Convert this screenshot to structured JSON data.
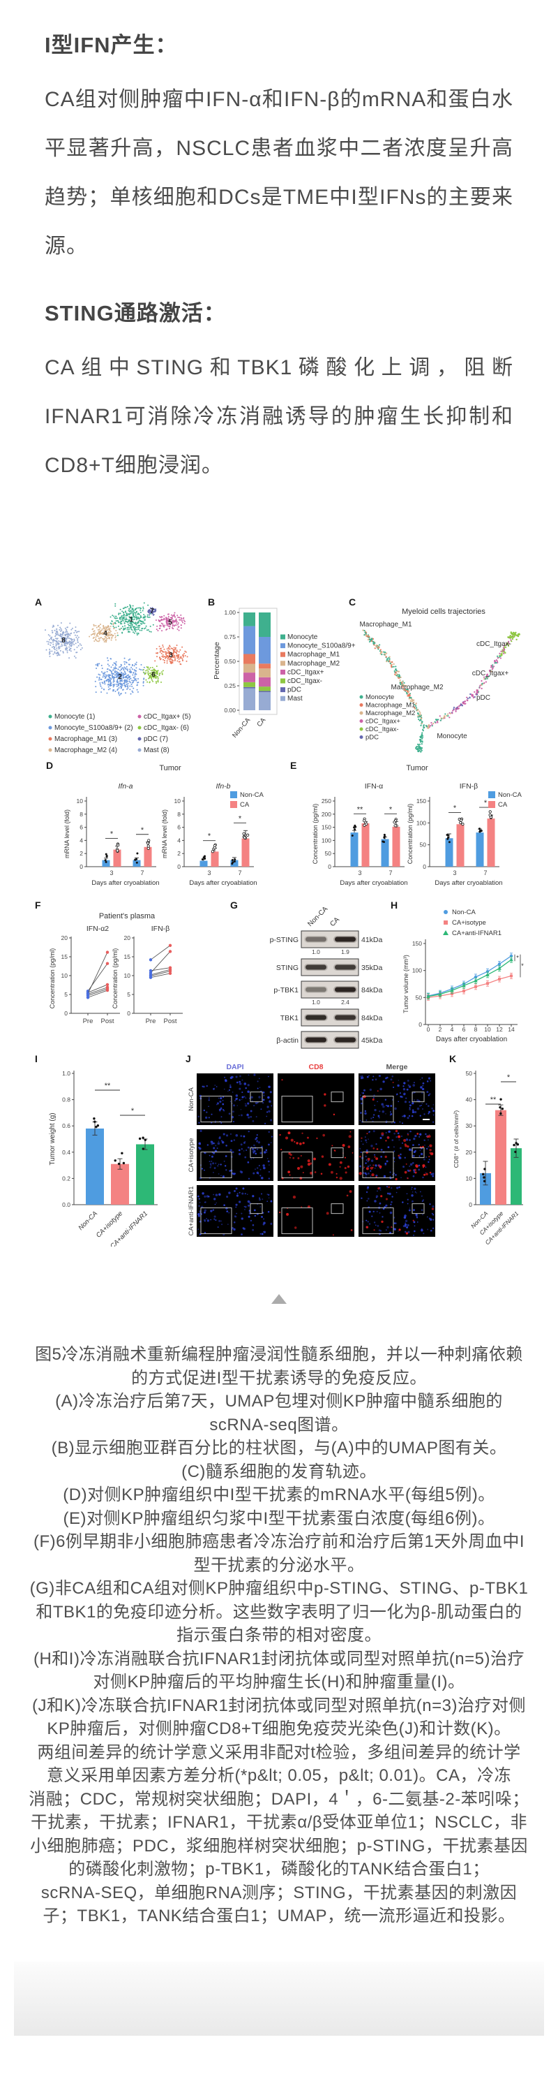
{
  "page": {
    "background": "#ffffff"
  },
  "sections": [
    {
      "heading": "I型IFN产生：",
      "body": "CA组对侧肿瘤中IFN-α和IFN-β的mRNA和蛋白水平显著升高，NSCLC患者血浆中二者浓度呈升高趋势；单核细胞和DCs是TME中I型IFNs的主要来源。"
    },
    {
      "heading": "STING通路激活：",
      "body": "CA组中STING和TBK1磷酸化上调，阻断IFNAR1可消除冷冻消融诱导的肿瘤生长抑制和CD8+T细胞浸润。"
    }
  ],
  "figure": {
    "collapse_icon": "triangle-up-icon",
    "panels": [
      "A",
      "B",
      "C",
      "D",
      "E",
      "F",
      "G",
      "H",
      "I",
      "J",
      "K"
    ]
  },
  "palette": {
    "blue": "#4f9ce0",
    "pink": "#f48282",
    "green": "#2db876",
    "axis": "#444444",
    "label": "#333333",
    "pre_dot": "#4b6fe0",
    "post_dot": "#e85d5d"
  },
  "chart_data": [
    {
      "panel": "A",
      "type": "scatter",
      "name": "UMAP of tumor-infiltrating myeloid cells",
      "clusters": [
        {
          "id": 1,
          "name": "Monocyte",
          "color": "#3fb08e",
          "x": 140,
          "y": 42,
          "rx": 34,
          "ry": 24
        },
        {
          "id": 2,
          "name": "Monocyte_S100a8/9+",
          "color": "#6d99dd",
          "x": 124,
          "y": 124,
          "rx": 38,
          "ry": 28
        },
        {
          "id": 3,
          "name": "Macrophage_M1",
          "color": "#e97a5f",
          "x": 197,
          "y": 93,
          "rx": 26,
          "ry": 15
        },
        {
          "id": 4,
          "name": "Macrophage_M2",
          "color": "#d9b48d",
          "x": 103,
          "y": 62,
          "rx": 24,
          "ry": 15
        },
        {
          "id": 5,
          "name": "cDC_Itgax+",
          "color": "#cc62a6",
          "x": 196,
          "y": 46,
          "rx": 22,
          "ry": 14
        },
        {
          "id": 6,
          "name": "cDC_Itgax-",
          "color": "#8ec742",
          "x": 172,
          "y": 121,
          "rx": 15,
          "ry": 13
        },
        {
          "id": 7,
          "name": "pDC",
          "color": "#6468b0",
          "x": 170,
          "y": 30,
          "rx": 8,
          "ry": 6
        },
        {
          "id": 8,
          "name": "Mast",
          "color": "#97abd3",
          "x": 43,
          "y": 72,
          "rx": 28,
          "ry": 26
        }
      ],
      "legend": [
        {
          "label": "Monocyte (1)",
          "color": "#3fb08e"
        },
        {
          "label": "Monocyte_S100a8/9+ (2)",
          "color": "#6d99dd"
        },
        {
          "label": "Macrophage_M1 (3)",
          "color": "#e97a5f"
        },
        {
          "label": "Macrophage_M2 (4)",
          "color": "#d9b48d"
        },
        {
          "label": "cDC_Itgax+ (5)",
          "color": "#cc62a6"
        },
        {
          "label": "cDC_Itgax- (6)",
          "color": "#8ec742"
        },
        {
          "label": "pDC (7)",
          "color": "#6468b0"
        },
        {
          "label": "Mast (8)",
          "color": "#97abd3"
        }
      ]
    },
    {
      "panel": "B",
      "type": "stacked-bar",
      "ylabel": "Percentage",
      "yticks": [
        "0.00",
        "0.25",
        "0.50",
        "0.75",
        "1.00"
      ],
      "categories": [
        "Non-CA",
        "CA"
      ],
      "stack_order": [
        "Mast",
        "pDC",
        "cDC_Itgax-",
        "cDC_Itgax+",
        "Macrophage_M2",
        "Macrophage_M1",
        "Monocyte_S100a8/9+",
        "Monocyte"
      ],
      "values": {
        "Non-CA": [
          0.225,
          0.012,
          0.05,
          0.098,
          0.09,
          0.1,
          0.285,
          0.14
        ],
        "CA": [
          0.185,
          0.012,
          0.045,
          0.095,
          0.09,
          0.05,
          0.273,
          0.25
        ]
      },
      "colors": {
        "Monocyte": "#3fb08e",
        "Monocyte_S100a8/9+": "#6d99dd",
        "Macrophage_M1": "#e97a5f",
        "Macrophage_M2": "#d9b48d",
        "cDC_Itgax+": "#cc62a6",
        "cDC_Itgax-": "#8ec742",
        "pDC": "#6468b0",
        "Mast": "#97abd3"
      },
      "legend": [
        "Monocyte",
        "Monocyte_S100a8/9+",
        "Macrophage_M1",
        "Macrophage_M2",
        "cDC_Itgax+",
        "cDC_Itgax-",
        "pDC",
        "Mast"
      ]
    },
    {
      "panel": "C",
      "type": "trajectory",
      "title": "Myeloid cells trajectories",
      "labels": [
        {
          "text": "Macrophage_M1",
          "x": 505,
          "y": 52
        },
        {
          "text": "cDC_Itgax-",
          "x": 660,
          "y": 80
        },
        {
          "text": "cDC_Itgax+",
          "x": 655,
          "y": 122
        },
        {
          "text": "Macrophage_M2",
          "x": 550,
          "y": 142
        },
        {
          "text": "pDC",
          "x": 645,
          "y": 157
        },
        {
          "text": "Monocyte",
          "x": 600,
          "y": 212
        }
      ],
      "arms": [
        {
          "x1": 472,
          "y1": 58,
          "x2": 510,
          "y2": 100,
          "n": 90,
          "colors": [
            "#3fb08e",
            "#e97a5f",
            "#3fb08e",
            "#d9b48d"
          ]
        },
        {
          "x1": 510,
          "y1": 100,
          "x2": 548,
          "y2": 168,
          "n": 110,
          "colors": [
            "#3fb08e",
            "#d9b48d",
            "#3fb08e",
            "#e97a5f",
            "#d9b48d"
          ]
        },
        {
          "x1": 548,
          "y1": 168,
          "x2": 560,
          "y2": 196,
          "n": 40,
          "colors": [
            "#3fb08e",
            "#d9b48d"
          ]
        },
        {
          "x1": 686,
          "y1": 66,
          "x2": 668,
          "y2": 95,
          "n": 45,
          "colors": [
            "#8ec742",
            "#cc62a6",
            "#8ec742"
          ]
        },
        {
          "x1": 668,
          "y1": 95,
          "x2": 636,
          "y2": 146,
          "n": 70,
          "colors": [
            "#cc62a6",
            "#3fb08e",
            "#cc62a6",
            "#d9b48d"
          ]
        },
        {
          "x1": 636,
          "y1": 146,
          "x2": 600,
          "y2": 176,
          "n": 55,
          "colors": [
            "#cc62a6",
            "#6468b0",
            "#cc62a6"
          ]
        },
        {
          "x1": 600,
          "y1": 176,
          "x2": 562,
          "y2": 197,
          "n": 45,
          "colors": [
            "#cc62a6",
            "#3fb08e",
            "#d9b48d"
          ]
        },
        {
          "x1": 558,
          "y1": 198,
          "x2": 553,
          "y2": 226,
          "n": 30,
          "colors": [
            "#3fb08e"
          ]
        }
      ],
      "blobs": [
        {
          "x": 688,
          "y": 64,
          "rx": 9,
          "ry": 7,
          "n": 40,
          "color": "#8ec742"
        },
        {
          "x": 553,
          "y": 228,
          "rx": 6,
          "ry": 6,
          "n": 22,
          "color": "#3fb08e"
        }
      ],
      "legend": [
        {
          "label": "Monocyte",
          "color": "#3fb08e"
        },
        {
          "label": "Macrophage_M1",
          "color": "#e97a5f"
        },
        {
          "label": "Macrophage_M2",
          "color": "#d9b48d"
        },
        {
          "label": "cDC_Itgax+",
          "color": "#cc62a6"
        },
        {
          "label": "cDC_Itgax-",
          "color": "#8ec742"
        },
        {
          "label": "pDC",
          "color": "#6468b0"
        }
      ]
    },
    {
      "panel": "D",
      "type": "grouped-bar",
      "suptitle": "Tumor",
      "ylabel": "mRNA level (fold)",
      "xlabel": "Days after cryoablation",
      "categories": [
        "3",
        "7"
      ],
      "legend": [
        {
          "label": "Non-CA",
          "color": "#4f9ce0"
        },
        {
          "label": "CA",
          "color": "#f48282"
        }
      ],
      "subplots": [
        {
          "title": "Ifn-a",
          "italic": true,
          "ylim": [
            0,
            10
          ],
          "yticks": [
            0,
            2,
            4,
            6,
            8,
            10
          ],
          "series": [
            {
              "name": "Non-CA",
              "values": [
                1.0,
                1.0
              ],
              "err": [
                0.3,
                0.35
              ]
            },
            {
              "name": "CA",
              "values": [
                2.6,
                3.0
              ],
              "err": [
                0.55,
                0.75
              ]
            }
          ],
          "sig": [
            "*",
            "*"
          ]
        },
        {
          "title": "Ifn-b",
          "italic": true,
          "ylim": [
            0,
            10
          ],
          "yticks": [
            0,
            2,
            4,
            6,
            8,
            10
          ],
          "series": [
            {
              "name": "Non-CA",
              "values": [
                0.9,
                1.0
              ],
              "err": [
                0.3,
                0.4
              ]
            },
            {
              "name": "CA",
              "values": [
                2.3,
                4.3
              ],
              "err": [
                0.5,
                1.2
              ]
            }
          ],
          "sig": [
            "*",
            "*"
          ]
        }
      ]
    },
    {
      "panel": "E",
      "type": "grouped-bar",
      "suptitle": "Tumor",
      "ylabel": "Concentration (pg/ml)",
      "xlabel": "Days after cryoablation",
      "categories": [
        "3",
        "7"
      ],
      "legend": [
        {
          "label": "Non-CA",
          "color": "#4f9ce0"
        },
        {
          "label": "CA",
          "color": "#f48282"
        }
      ],
      "subplots": [
        {
          "title": "IFN-α",
          "italic": false,
          "ylim": [
            0,
            250
          ],
          "yticks": [
            0,
            50,
            100,
            150,
            200,
            250
          ],
          "series": [
            {
              "name": "Non-CA",
              "values": [
                130,
                105
              ],
              "err": [
                8,
                8
              ]
            },
            {
              "name": "CA",
              "values": [
                165,
                152
              ],
              "err": [
                7,
                20
              ]
            }
          ],
          "sig": [
            "**",
            "*"
          ]
        },
        {
          "title": "IFN-β",
          "italic": false,
          "ylim": [
            0,
            150
          ],
          "yticks": [
            0,
            50,
            100,
            150
          ],
          "series": [
            {
              "name": "Non-CA",
              "values": [
                65,
                78
              ],
              "err": [
                10,
                8
              ]
            },
            {
              "name": "CA",
              "values": [
                97,
                110
              ],
              "err": [
                9,
                8
              ]
            }
          ],
          "sig": [
            "*",
            "*"
          ]
        }
      ]
    },
    {
      "panel": "F",
      "type": "paired-lines",
      "suptitle": "Patient's plasma",
      "ylabel": "Concentration (pg/ml)",
      "xticklabels": [
        "Pre",
        "Post"
      ],
      "subplots": [
        {
          "title": "IFN-α2",
          "ylim": [
            0,
            20
          ],
          "yticks": [
            0,
            5,
            10,
            15,
            20
          ],
          "pairs": [
            [
              4.2,
              6.1
            ],
            [
              4.7,
              6.5
            ],
            [
              5.1,
              6.9
            ],
            [
              5.5,
              7.6
            ],
            [
              5.9,
              13.2
            ],
            [
              5.2,
              16.2
            ]
          ]
        },
        {
          "title": "IFN-β",
          "ylim": [
            0,
            20
          ],
          "yticks": [
            0,
            5,
            10,
            15,
            20
          ],
          "pairs": [
            [
              9.5,
              10.6
            ],
            [
              9.9,
              11.2
            ],
            [
              10.2,
              11.6
            ],
            [
              10.7,
              16.4
            ],
            [
              11.3,
              12.1
            ],
            [
              14.2,
              18.0
            ]
          ]
        }
      ],
      "point_colors": {
        "pre": "#4b6fe0",
        "post": "#e85d5d"
      }
    },
    {
      "panel": "G",
      "type": "western-blot",
      "columns": [
        "Non-CA",
        "CA"
      ],
      "rows": [
        {
          "label": "p-STING",
          "kda": "41kDa",
          "ratios": [
            "1.0",
            "1.9"
          ],
          "band_intensity": [
            0.5,
            0.95
          ]
        },
        {
          "label": "STING",
          "kda": "35kDa",
          "band_intensity": [
            0.8,
            0.8
          ]
        },
        {
          "label": "p-TBK1",
          "kda": "84kDa",
          "ratios": [
            "1.0",
            "2.4"
          ],
          "band_intensity": [
            0.45,
            0.95
          ]
        },
        {
          "label": "TBK1",
          "kda": "84kDa",
          "band_intensity": [
            0.9,
            0.85
          ]
        },
        {
          "label": "β-actin",
          "kda": "45kDa",
          "band_intensity": [
            0.95,
            0.95
          ]
        }
      ]
    },
    {
      "panel": "H",
      "type": "line",
      "ylabel": "Tumor volume (mm³)",
      "xlabel": "Days after cryoablation",
      "x": [
        0,
        2,
        4,
        6,
        8,
        10,
        12,
        14
      ],
      "ylim": [
        0,
        150
      ],
      "yticks": [
        0,
        50,
        100,
        150
      ],
      "series": [
        {
          "name": "Non-CA",
          "color": "#4f9ce0",
          "marker": "circle",
          "values": [
            53,
            58,
            66,
            75,
            88,
            98,
            112,
            127
          ]
        },
        {
          "name": "CA+isotype",
          "color": "#f48282",
          "marker": "square",
          "values": [
            50,
            53,
            57,
            62,
            70,
            76,
            84,
            90
          ]
        },
        {
          "name": "CA+anti-IFNAR1",
          "color": "#2db876",
          "marker": "triangle",
          "values": [
            52,
            56,
            63,
            72,
            81,
            92,
            104,
            120
          ]
        }
      ],
      "sig": [
        "*",
        "*"
      ]
    },
    {
      "panel": "I",
      "type": "bar",
      "ylabel": "Tumor weight (g)",
      "ylim": [
        0,
        1.0
      ],
      "yticks": [
        "0.0",
        "0.2",
        "0.4",
        "0.6",
        "0.8",
        "1.0"
      ],
      "categories": [
        "Non-CA",
        "CA+isotype",
        "CA+anti-IFNAR1"
      ],
      "values": [
        0.58,
        0.31,
        0.46
      ],
      "errors": [
        0.05,
        0.04,
        0.04
      ],
      "bar_colors": [
        "#4f9ce0",
        "#f48282",
        "#2db876"
      ],
      "sig": [
        {
          "between": [
            0,
            1
          ],
          "label": "**"
        },
        {
          "between": [
            1,
            2
          ],
          "label": "*"
        }
      ]
    },
    {
      "panel": "J",
      "type": "micrographs",
      "col_headers": [
        {
          "label": "DAPI",
          "color": "#6a6fd8"
        },
        {
          "label": "CD8",
          "color": "#e84040"
        },
        {
          "label": "Merge",
          "color": "#555555"
        }
      ],
      "row_headers": [
        "Non-CA",
        "CA+isotype",
        "CA+anti-IFNAR1"
      ],
      "signal": {
        "dapi_density": [
          130,
          130,
          115
        ],
        "cd8_density": [
          4,
          55,
          12
        ]
      },
      "stain_colors": {
        "dapi": "#2b3fd1",
        "cd8": "#e11d1d"
      }
    },
    {
      "panel": "K",
      "type": "bar",
      "ylabel": "CD8⁺ (# of cells/mm²)",
      "ylim": [
        0,
        50
      ],
      "yticks": [
        0,
        10,
        20,
        30,
        40,
        50
      ],
      "categories": [
        "Non-CA",
        "CA+isotype",
        "CA+anti-IFNAR1"
      ],
      "values": [
        12,
        36,
        21.5
      ],
      "errors": [
        4.5,
        2,
        3.5
      ],
      "bar_colors": [
        "#4f9ce0",
        "#f48282",
        "#2db876"
      ],
      "sig": [
        {
          "between": [
            0,
            1
          ],
          "label": "**"
        },
        {
          "between": [
            1,
            2
          ],
          "label": "*"
        }
      ]
    }
  ],
  "caption": {
    "lines": [
      "图5冷冻消融术重新编程肿瘤浸润性髓系细胞，并以一种刺痛依赖",
      "的方式促进I型干扰素诱导的免疫反应。",
      "(A)冷冻治疗后第7天，UMAP包埋对侧KP肿瘤中髓系细胞的",
      "scRNA-seq图谱。",
      "(B)显示细胞亚群百分比的柱状图，与(A)中的UMAP图有关。",
      "(C)髓系细胞的发育轨迹。",
      "(D)对侧KP肿瘤组织中I型干扰素的mRNA水平(每组5例)。",
      "(E)对侧KP肿瘤组织匀浆中I型干扰素蛋白浓度(每组6例)。",
      "(F)6例早期非小细胞肺癌患者冷冻治疗前和治疗后第1天外周血中I",
      "型干扰素的分泌水平。",
      "(G)非CA组和CA组对侧KP肿瘤组织中p-STING、STING、p-TBK1",
      "和TBK1的免疫印迹分析。这些数字表明了归一化为β-肌动蛋白的",
      "指示蛋白条带的相对密度。",
      "(H和I)冷冻消融联合抗IFNAR1封闭抗体或同型对照单抗(n=5)治疗",
      "对侧KP肿瘤后的平均肿瘤生长(H)和肿瘤重量(I)。",
      "(J和K)冷冻联合抗IFNAR1封闭抗体或同型对照单抗(n=3)治疗对侧",
      "KP肿瘤后，对侧肿瘤CD8+T细胞免疫荧光染色(J)和计数(K)。",
      "两组间差异的统计学意义采用非配对t检验，多组间差异的统计学",
      "意义采用单因素方差分析(*p&lt; 0.05，p&lt; 0.01)。CA，冷冻",
      "消融；CDC，常规树突状细胞；DAPI，4＇，6-二氨基-2-苯吲哚；",
      "干扰素，干扰素；IFNAR1，干扰素α/β受体亚单位1；NSCLC，非",
      "小细胞肺癌；PDC，浆细胞样树突状细胞；p-STING，干扰素基因",
      "的磷酸化刺激物；p-TBK1，磷酸化的TANK结合蛋白1；",
      "scRNA-SEQ，单细胞RNA测序；STING，干扰素基因的刺激因",
      "子；TBK1，TANK结合蛋白1；UMAP，统一流形逼近和投影。"
    ]
  }
}
